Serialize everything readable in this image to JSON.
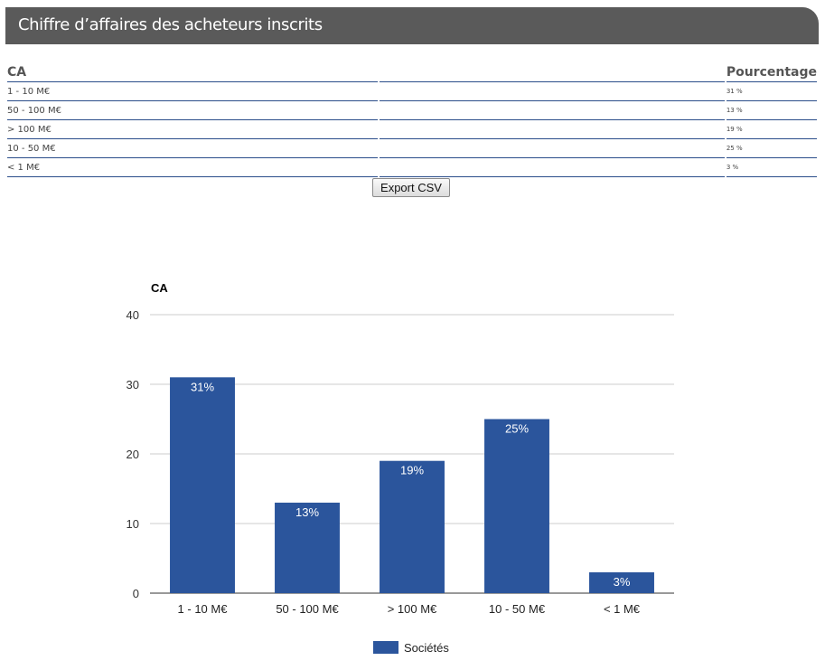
{
  "header": {
    "title": "Chiffre d’affaires des acheteurs inscrits"
  },
  "table": {
    "columns": [
      "CA",
      "",
      "Pourcentage"
    ],
    "rows": [
      {
        "ca": "1 - 10 M€",
        "pct": "31 %"
      },
      {
        "ca": "50 - 100 M€",
        "pct": "13 %"
      },
      {
        "ca": "> 100 M€",
        "pct": "19 %"
      },
      {
        "ca": "10 - 50 M€",
        "pct": "25 %"
      },
      {
        "ca": "< 1 M€",
        "pct": "3 %"
      }
    ]
  },
  "export_button": {
    "label": "Export CSV"
  },
  "colors": {
    "header_bg": "#5a5a5a",
    "bar": "#2b559c",
    "grid": "#cccccc",
    "row_border": "#2a4d8a"
  },
  "chart_data": {
    "type": "bar",
    "title": "",
    "ylabel": "CA",
    "xlabel": "",
    "categories": [
      "1 - 10 M€",
      "50 - 100 M€",
      "> 100 M€",
      "10 - 50 M€",
      "< 1 M€"
    ],
    "series": [
      {
        "name": "Sociétés",
        "values": [
          31,
          13,
          19,
          25,
          3
        ],
        "labels": [
          "31%",
          "13%",
          "19%",
          "25%",
          "3%"
        ]
      }
    ],
    "ylim": [
      0,
      40
    ],
    "yticks": [
      0,
      10,
      20,
      30,
      40
    ],
    "grid": true,
    "legend": "bottom"
  }
}
